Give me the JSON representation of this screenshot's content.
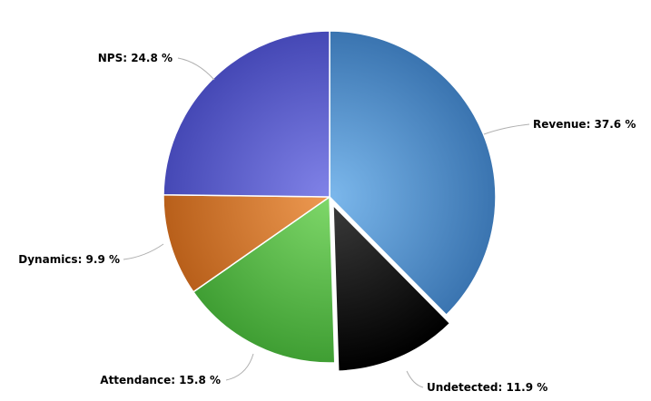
{
  "chart_data": {
    "type": "pie",
    "title": "",
    "unit": "%",
    "slices": [
      {
        "name": "Revenue",
        "value": 37.6,
        "label": "Revenue: 37.6 %",
        "color": "#5b9bd5",
        "gradient": [
          "#7cb8ec",
          "#3a74b0"
        ],
        "sliced": false
      },
      {
        "name": "Undetected",
        "value": 11.9,
        "label": "Undetected: 11.9 %",
        "color": "#111111",
        "gradient": [
          "#3a3a3a",
          "#000000"
        ],
        "sliced": true
      },
      {
        "name": "Attendance",
        "value": 15.8,
        "label": "Attendance: 15.8 %",
        "color": "#5cc04a",
        "gradient": [
          "#7fd86a",
          "#3f9e33"
        ],
        "sliced": false
      },
      {
        "name": "Dynamics",
        "value": 9.9,
        "label": "Dynamics: 9.9 %",
        "color": "#d9782d",
        "gradient": [
          "#ee9a52",
          "#b85f1a"
        ],
        "sliced": false
      },
      {
        "name": "NPS",
        "value": 24.8,
        "label": "NPS: 24.8 %",
        "color": "#5b5fcf",
        "gradient": [
          "#8183e8",
          "#4548b5"
        ],
        "sliced": false
      }
    ]
  }
}
